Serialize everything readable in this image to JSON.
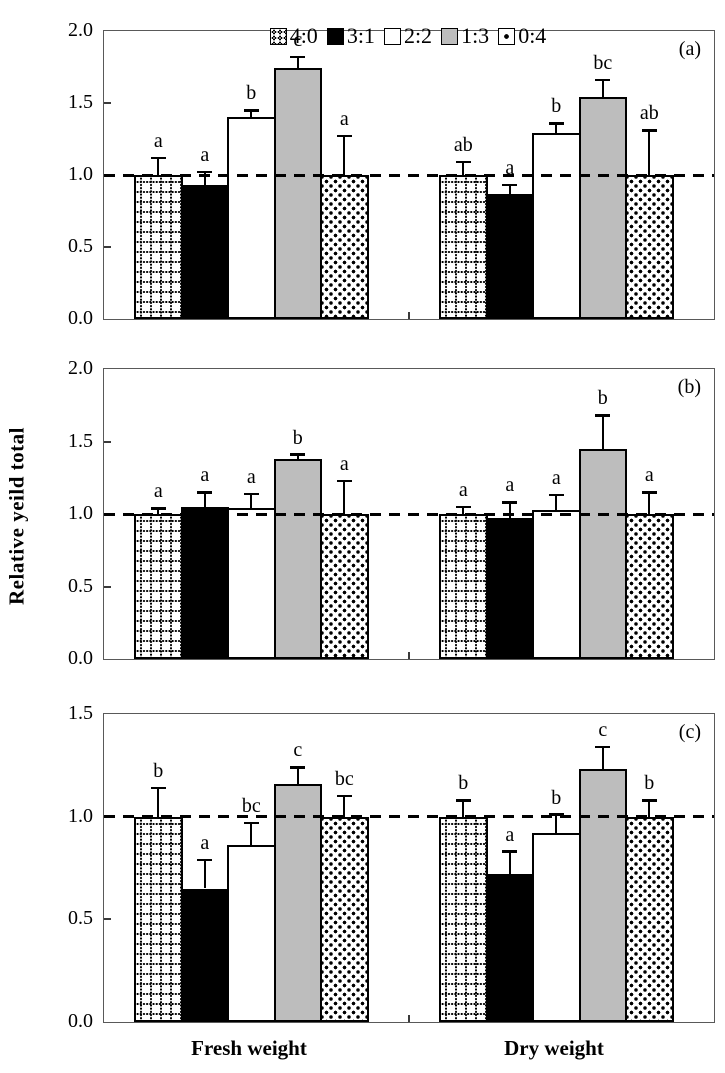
{
  "figure": {
    "ylabel": "Relative yeild total"
  },
  "x_categories": [
    "Fresh weight",
    "Dry weight"
  ],
  "legend": {
    "position": "top",
    "items": [
      {
        "label": "4:0",
        "swatch": "dotted-grid"
      },
      {
        "label": "3:1",
        "swatch": "solid-black"
      },
      {
        "label": "2:2",
        "swatch": "open-white"
      },
      {
        "label": "1:3",
        "swatch": "solid-gray"
      },
      {
        "label": "0:4",
        "swatch": "center-dot"
      }
    ]
  },
  "colors": {
    "gray_fill": "#bdbdbd",
    "bar_outline": "#000000",
    "reference_line": "#000000",
    "background": "#ffffff"
  },
  "chart_data": [
    {
      "type": "bar",
      "panel_label": "(a)",
      "categories": [
        "Fresh weight",
        "Dry weight"
      ],
      "ylabel": "Relative yeild total",
      "ylim": [
        0,
        2.0
      ],
      "yticks": [
        0.0,
        0.5,
        1.0,
        1.5,
        2.0
      ],
      "reference_line": 1.0,
      "grid": false,
      "legend_visible": true,
      "series": [
        {
          "name": "4:0",
          "pattern": "dotted-grid",
          "values": [
            1.0,
            1.0
          ],
          "errors": [
            0.12,
            0.09
          ],
          "sig_labels": [
            "a",
            "ab"
          ]
        },
        {
          "name": "3:1",
          "pattern": "solid-black",
          "values": [
            0.93,
            0.87
          ],
          "errors": [
            0.09,
            0.06
          ],
          "sig_labels": [
            "a",
            "a"
          ]
        },
        {
          "name": "2:2",
          "pattern": "open-white",
          "values": [
            1.4,
            1.29
          ],
          "errors": [
            0.05,
            0.07
          ],
          "sig_labels": [
            "b",
            "b"
          ]
        },
        {
          "name": "1:3",
          "pattern": "solid-gray",
          "values": [
            1.74,
            1.54
          ],
          "errors": [
            0.08,
            0.12
          ],
          "sig_labels": [
            "c",
            "bc"
          ]
        },
        {
          "name": "0:4",
          "pattern": "center-dot",
          "values": [
            1.0,
            1.0
          ],
          "errors": [
            0.27,
            0.31
          ],
          "sig_labels": [
            "a",
            "ab"
          ]
        }
      ]
    },
    {
      "type": "bar",
      "panel_label": "(b)",
      "categories": [
        "Fresh weight",
        "Dry weight"
      ],
      "ylabel": "Relative yeild total",
      "ylim": [
        0,
        2.0
      ],
      "yticks": [
        0.0,
        0.5,
        1.0,
        1.5,
        2.0
      ],
      "reference_line": 1.0,
      "grid": false,
      "legend_visible": false,
      "series": [
        {
          "name": "4:0",
          "pattern": "dotted-grid",
          "values": [
            1.0,
            1.0
          ],
          "errors": [
            0.04,
            0.05
          ],
          "sig_labels": [
            "a",
            "a"
          ]
        },
        {
          "name": "3:1",
          "pattern": "solid-black",
          "values": [
            1.05,
            0.97
          ],
          "errors": [
            0.1,
            0.11
          ],
          "sig_labels": [
            "a",
            "a"
          ]
        },
        {
          "name": "2:2",
          "pattern": "open-white",
          "values": [
            1.04,
            1.03
          ],
          "errors": [
            0.1,
            0.1
          ],
          "sig_labels": [
            "a",
            "a"
          ]
        },
        {
          "name": "1:3",
          "pattern": "solid-gray",
          "values": [
            1.38,
            1.45
          ],
          "errors": [
            0.03,
            0.23
          ],
          "sig_labels": [
            "b",
            "b"
          ]
        },
        {
          "name": "0:4",
          "pattern": "center-dot",
          "values": [
            1.0,
            1.0
          ],
          "errors": [
            0.23,
            0.15
          ],
          "sig_labels": [
            "a",
            "a"
          ]
        }
      ]
    },
    {
      "type": "bar",
      "panel_label": "(c)",
      "categories": [
        "Fresh weight",
        "Dry weight"
      ],
      "ylabel": "Relative yeild total",
      "ylim": [
        0,
        1.5
      ],
      "yticks": [
        0.0,
        0.5,
        1.0,
        1.5
      ],
      "reference_line": 1.0,
      "grid": false,
      "legend_visible": false,
      "series": [
        {
          "name": "4:0",
          "pattern": "dotted-grid",
          "values": [
            1.0,
            1.0
          ],
          "errors": [
            0.14,
            0.08
          ],
          "sig_labels": [
            "b",
            "b"
          ]
        },
        {
          "name": "3:1",
          "pattern": "solid-black",
          "values": [
            0.65,
            0.72
          ],
          "errors": [
            0.14,
            0.11
          ],
          "sig_labels": [
            "a",
            "a"
          ]
        },
        {
          "name": "2:2",
          "pattern": "open-white",
          "values": [
            0.86,
            0.92
          ],
          "errors": [
            0.11,
            0.09
          ],
          "sig_labels": [
            "bc",
            "b"
          ]
        },
        {
          "name": "1:3",
          "pattern": "solid-gray",
          "values": [
            1.16,
            1.23
          ],
          "errors": [
            0.08,
            0.11
          ],
          "sig_labels": [
            "c",
            "c"
          ]
        },
        {
          "name": "0:4",
          "pattern": "center-dot",
          "values": [
            1.0,
            1.0
          ],
          "errors": [
            0.1,
            0.08
          ],
          "sig_labels": [
            "bc",
            "b"
          ]
        }
      ]
    }
  ]
}
